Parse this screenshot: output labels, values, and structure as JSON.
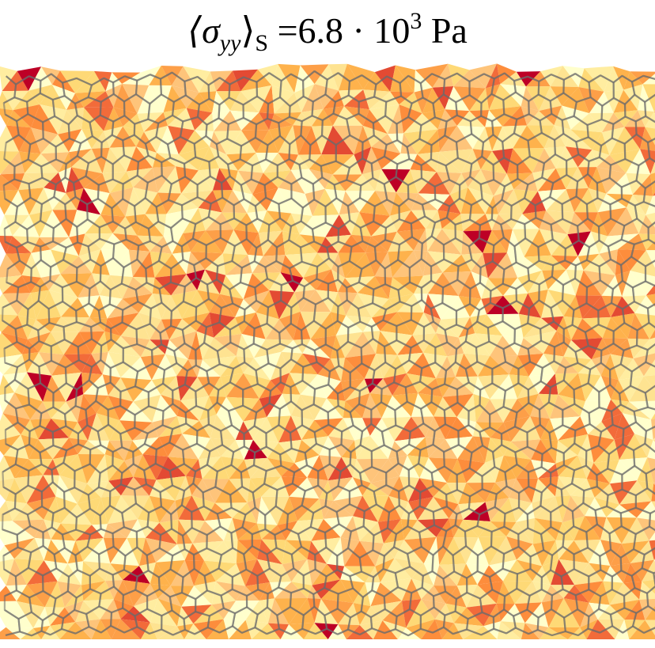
{
  "title": {
    "open": "⟨σ",
    "sub_yy": "yy",
    "close": "⟩",
    "sub_s": "S",
    "equals": " =6.8 · 10",
    "exponent": "3",
    "unit": " Pa"
  }
}
